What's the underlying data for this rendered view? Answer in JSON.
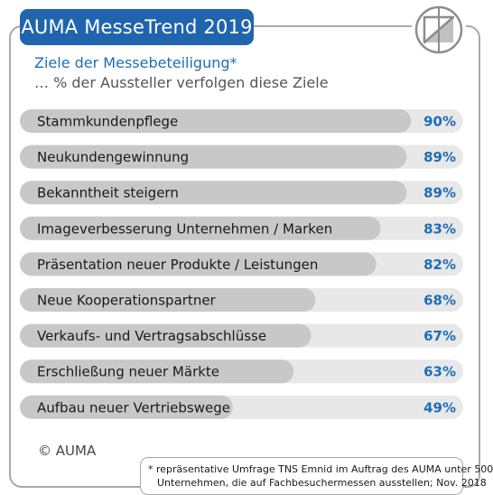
{
  "header": {
    "title": "AUMA MesseTrend 2019"
  },
  "colors": {
    "accent": "#2064ae",
    "bar": "#c8c8c8",
    "track": "#e8e8e8",
    "value_text": "#1f6db6"
  },
  "logo": {
    "icon": "auma-logo-icon"
  },
  "copyright": "© AUMA",
  "footnote": {
    "line1": "* repräsentative Umfrage TNS Emnid im Auftrag des AUMA unter 500",
    "line2": "Unternehmen, die auf Fachbesuchermessen ausstellen; Nov. 2018"
  },
  "chart_data": {
    "type": "bar",
    "orientation": "horizontal",
    "title": "Ziele der Messebeteiligung*",
    "subtitle": "… % der Aussteller verfolgen diese Ziele",
    "unit": "%",
    "xlim": [
      0,
      100
    ],
    "categories": [
      "Stammkundenpflege",
      "Neukundengewinnung",
      "Bekanntheit steigern",
      "Imageverbesserung Unternehmen / Marken",
      "Präsentation neuer Produkte / Leistungen",
      "Neue Kooperationspartner",
      "Verkaufs- und Vertragsabschlüsse",
      "Erschließung neuer Märkte",
      "Aufbau neuer Vertriebswege"
    ],
    "values": [
      90,
      89,
      89,
      83,
      82,
      68,
      67,
      63,
      49
    ],
    "value_labels": [
      "90%",
      "89%",
      "89%",
      "83%",
      "82%",
      "68%",
      "67%",
      "63%",
      "49%"
    ]
  }
}
